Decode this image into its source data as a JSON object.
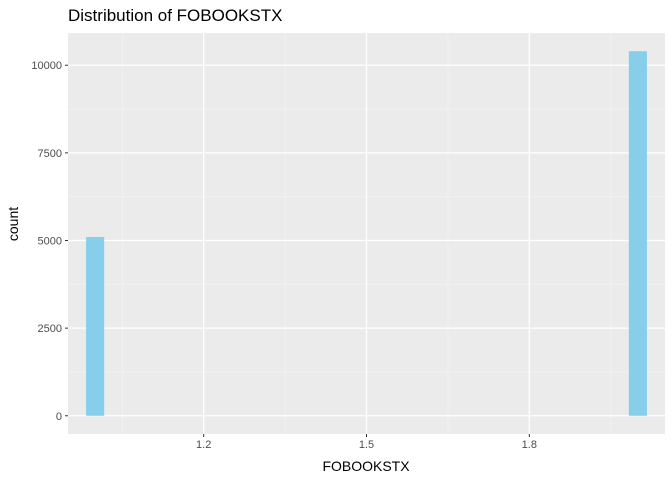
{
  "chart_data": {
    "type": "bar",
    "title": "Distribution of FOBOOKSTX",
    "xlabel": "FOBOOKSTX",
    "ylabel": "count",
    "x_ticks": [
      1.2,
      1.5,
      1.8
    ],
    "x_tick_labels": [
      "1.2",
      "1.5",
      "1.8"
    ],
    "y_ticks": [
      0,
      2500,
      5000,
      7500,
      10000
    ],
    "y_tick_labels": [
      "0",
      "2500",
      "5000",
      "7500",
      "10000"
    ],
    "xlim": [
      0.95,
      2.05
    ],
    "ylim": [
      -520,
      10920
    ],
    "bin_width": 0.0333,
    "bars": [
      {
        "x": 1.0,
        "count": 5100
      },
      {
        "x": 2.0,
        "count": 10400
      }
    ],
    "grid": true,
    "legend": "none",
    "colors": {
      "bar_fill": "#87ceeb",
      "panel_background": "#ebebeb",
      "grid_major": "#ffffff",
      "grid_minor": "#f2f2f2",
      "tick_label": "#4d4d4d"
    }
  }
}
